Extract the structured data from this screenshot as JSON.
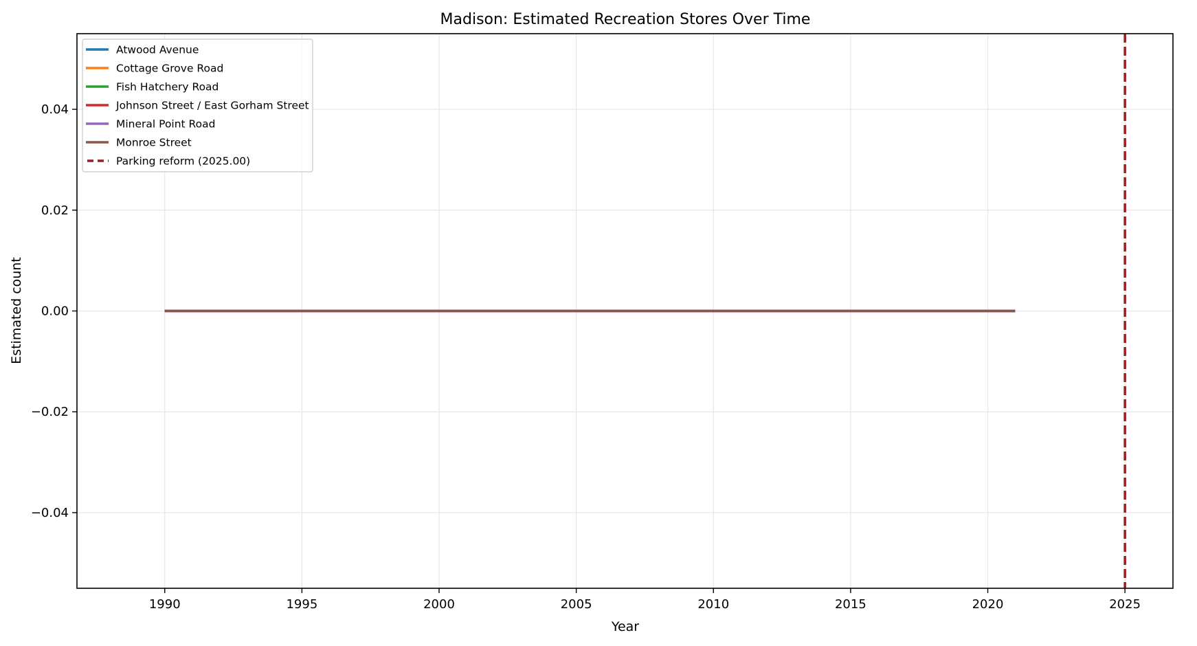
{
  "chart_data": {
    "type": "line",
    "title": "Madison: Estimated Recreation Stores Over Time",
    "xlabel": "Year",
    "ylabel": "Estimated count",
    "xlim": [
      1986.8,
      2026.75
    ],
    "ylim": [
      -0.055,
      0.055
    ],
    "grid": true,
    "legend_position": "top-left",
    "x_ticks": [
      1990,
      1995,
      2000,
      2005,
      2010,
      2015,
      2020,
      2025
    ],
    "x_tick_labels": [
      "1990",
      "1995",
      "2000",
      "2005",
      "2010",
      "2015",
      "2020",
      "2025"
    ],
    "y_ticks": [
      0.04,
      0.02,
      0.0,
      -0.02,
      -0.04
    ],
    "y_tick_labels": [
      "0.04",
      "0.02",
      "0.00",
      "−0.02",
      "−0.04"
    ],
    "x": [
      1990,
      1991,
      1992,
      1993,
      1994,
      1995,
      1996,
      1997,
      1998,
      1999,
      2000,
      2001,
      2002,
      2003,
      2004,
      2005,
      2006,
      2007,
      2008,
      2009,
      2010,
      2011,
      2012,
      2013,
      2014,
      2015,
      2016,
      2017,
      2018,
      2019,
      2020,
      2021
    ],
    "series": [
      {
        "name": "Atwood Avenue",
        "color": "#1f77b4",
        "values": [
          0,
          0,
          0,
          0,
          0,
          0,
          0,
          0,
          0,
          0,
          0,
          0,
          0,
          0,
          0,
          0,
          0,
          0,
          0,
          0,
          0,
          0,
          0,
          0,
          0,
          0,
          0,
          0,
          0,
          0,
          0,
          0
        ]
      },
      {
        "name": "Cottage Grove Road",
        "color": "#ff7f0e",
        "values": [
          0,
          0,
          0,
          0,
          0,
          0,
          0,
          0,
          0,
          0,
          0,
          0,
          0,
          0,
          0,
          0,
          0,
          0,
          0,
          0,
          0,
          0,
          0,
          0,
          0,
          0,
          0,
          0,
          0,
          0,
          0,
          0
        ]
      },
      {
        "name": "Fish Hatchery Road",
        "color": "#2ca02c",
        "values": [
          0,
          0,
          0,
          0,
          0,
          0,
          0,
          0,
          0,
          0,
          0,
          0,
          0,
          0,
          0,
          0,
          0,
          0,
          0,
          0,
          0,
          0,
          0,
          0,
          0,
          0,
          0,
          0,
          0,
          0,
          0,
          0
        ]
      },
      {
        "name": "Johnson Street / East Gorham Street",
        "color": "#d62728",
        "values": [
          0,
          0,
          0,
          0,
          0,
          0,
          0,
          0,
          0,
          0,
          0,
          0,
          0,
          0,
          0,
          0,
          0,
          0,
          0,
          0,
          0,
          0,
          0,
          0,
          0,
          0,
          0,
          0,
          0,
          0,
          0,
          0
        ]
      },
      {
        "name": "Mineral Point Road",
        "color": "#9467bd",
        "values": [
          0,
          0,
          0,
          0,
          0,
          0,
          0,
          0,
          0,
          0,
          0,
          0,
          0,
          0,
          0,
          0,
          0,
          0,
          0,
          0,
          0,
          0,
          0,
          0,
          0,
          0,
          0,
          0,
          0,
          0,
          0,
          0
        ]
      },
      {
        "name": "Monroe Street",
        "color": "#8c564b",
        "values": [
          0,
          0,
          0,
          0,
          0,
          0,
          0,
          0,
          0,
          0,
          0,
          0,
          0,
          0,
          0,
          0,
          0,
          0,
          0,
          0,
          0,
          0,
          0,
          0,
          0,
          0,
          0,
          0,
          0,
          0,
          0,
          0
        ]
      }
    ],
    "reference_line": {
      "name": "Parking reform (2025.00)",
      "x": 2025.0,
      "color": "#9b1c24",
      "style": "dashed"
    }
  }
}
